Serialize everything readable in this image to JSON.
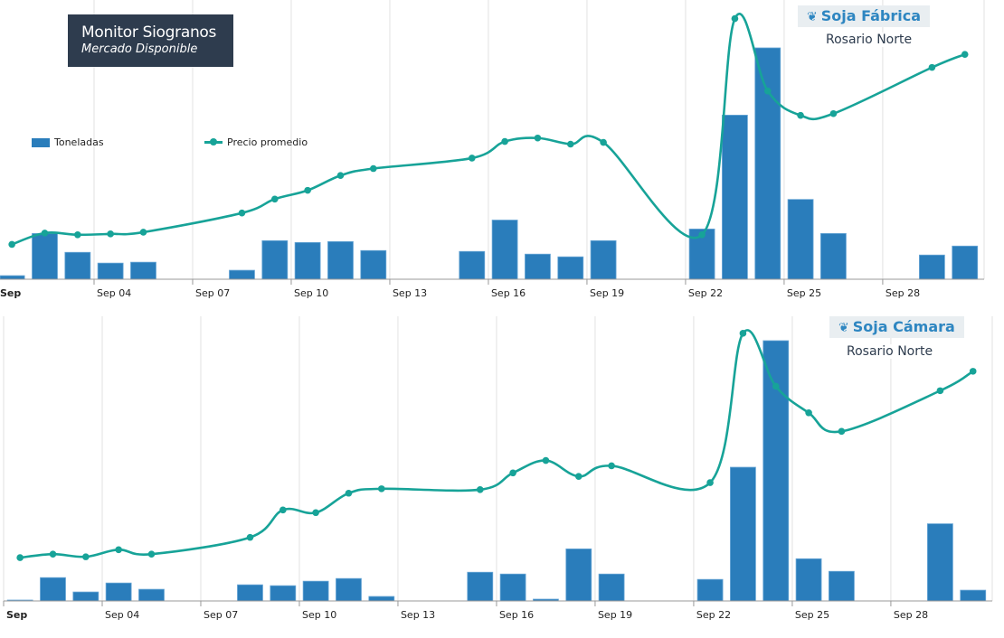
{
  "brand": {
    "title": "Monitor Siogranos",
    "subtitle": "Mercado Disponible"
  },
  "legend": {
    "bar_label": "Toneladas",
    "line_label": "Precio promedio"
  },
  "colors": {
    "bar": "#2a7dbb",
    "line": "#17a398",
    "brand_bg": "#2e3c4e",
    "badge_text": "#2e86c1",
    "badge_bg": "#e9eef1"
  },
  "chart_data": [
    {
      "type": "bar",
      "title": "Soja Fábrica",
      "subtitle": "Rosario Norte",
      "icon": "wheat-icon",
      "xlabel": "",
      "ylabel": "",
      "x_ticks": [
        "Sep",
        "Sep 04",
        "Sep 07",
        "Sep 10",
        "Sep 13",
        "Sep 16",
        "Sep 19",
        "Sep 22",
        "Sep 25",
        "Sep 28"
      ],
      "grid": true,
      "legend_position": "top-left",
      "categories": [
        "Sep 01",
        "Sep 02",
        "Sep 03",
        "Sep 04",
        "Sep 05",
        "Sep 08",
        "Sep 09",
        "Sep 10",
        "Sep 11",
        "Sep 12",
        "Sep 15",
        "Sep 16",
        "Sep 17",
        "Sep 18",
        "Sep 19",
        "Sep 22",
        "Sep 23",
        "Sep 24",
        "Sep 25",
        "Sep 26",
        "Sep 29",
        "Sep 30"
      ],
      "day_index": [
        1,
        2,
        3,
        4,
        5,
        8,
        9,
        10,
        11,
        12,
        15,
        16,
        17,
        18,
        19,
        22,
        23,
        24,
        25,
        26,
        29,
        30
      ],
      "series": [
        {
          "name": "Toneladas",
          "kind": "bar",
          "values": [
            4,
            51,
            30,
            18,
            19,
            10,
            43,
            41,
            42,
            32,
            31,
            66,
            28,
            25,
            43,
            56,
            183,
            258,
            89,
            51,
            27,
            37
          ]
        },
        {
          "name": "Precio promedio",
          "kind": "line",
          "values": [
            40,
            53,
            51,
            52,
            54,
            76,
            92,
            102,
            119,
            127,
            139,
            158,
            162,
            155,
            157,
            51,
            299,
            216,
            188,
            190,
            243,
            258
          ]
        }
      ],
      "ylim_bar": [
        0,
        260
      ],
      "ylim_line": [
        0,
        310
      ]
    },
    {
      "type": "bar",
      "title": "Soja Cámara",
      "subtitle": "Rosario Norte",
      "icon": "wheat-icon",
      "xlabel": "",
      "ylabel": "",
      "x_ticks": [
        "Sep",
        "Sep 04",
        "Sep 07",
        "Sep 10",
        "Sep 13",
        "Sep 16",
        "Sep 19",
        "Sep 22",
        "Sep 25",
        "Sep 28"
      ],
      "grid": true,
      "categories": [
        "Sep 01",
        "Sep 02",
        "Sep 03",
        "Sep 04",
        "Sep 05",
        "Sep 08",
        "Sep 09",
        "Sep 10",
        "Sep 11",
        "Sep 12",
        "Sep 15",
        "Sep 16",
        "Sep 17",
        "Sep 18",
        "Sep 19",
        "Sep 22",
        "Sep 23",
        "Sep 24",
        "Sep 25",
        "Sep 26",
        "Sep 29",
        "Sep 30"
      ],
      "day_index": [
        1,
        2,
        3,
        4,
        5,
        8,
        9,
        10,
        11,
        12,
        15,
        16,
        17,
        18,
        19,
        22,
        23,
        24,
        25,
        26,
        29,
        30
      ],
      "series": [
        {
          "name": "Toneladas",
          "kind": "bar",
          "values": [
            1,
            26,
            10,
            20,
            13,
            18,
            17,
            22,
            25,
            5,
            32,
            30,
            2,
            58,
            30,
            24,
            149,
            290,
            47,
            33,
            86,
            12
          ]
        },
        {
          "name": "Precio promedio",
          "kind": "line",
          "values": [
            49,
            53,
            50,
            58,
            53,
            72,
            103,
            100,
            122,
            127,
            126,
            145,
            159,
            141,
            153,
            134,
            303,
            243,
            213,
            192,
            238,
            260
          ]
        }
      ],
      "ylim_bar": [
        0,
        292
      ],
      "ylim_line": [
        0,
        310
      ]
    }
  ]
}
